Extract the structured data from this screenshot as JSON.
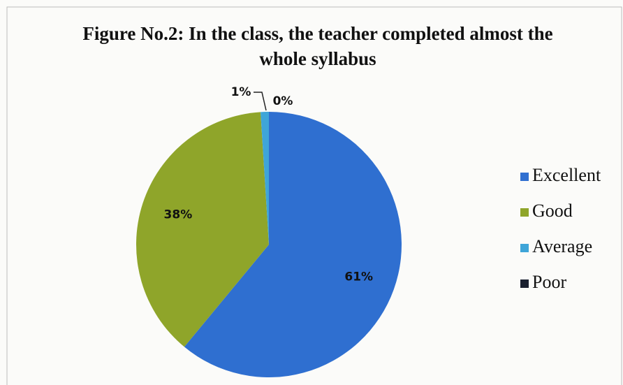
{
  "chart_data": {
    "type": "pie",
    "title": "Figure No.2: In the class, the teacher completed almost the whole syllabus",
    "categories": [
      "Excellent",
      "Good",
      "Average",
      "Poor"
    ],
    "values": [
      61,
      38,
      1,
      0
    ],
    "value_labels": [
      "61%",
      "38%",
      "1%",
      "0%"
    ],
    "colors": [
      "#2f6fd0",
      "#8fa52a",
      "#3fa5d8",
      "#1a2030"
    ],
    "legend": "right"
  }
}
